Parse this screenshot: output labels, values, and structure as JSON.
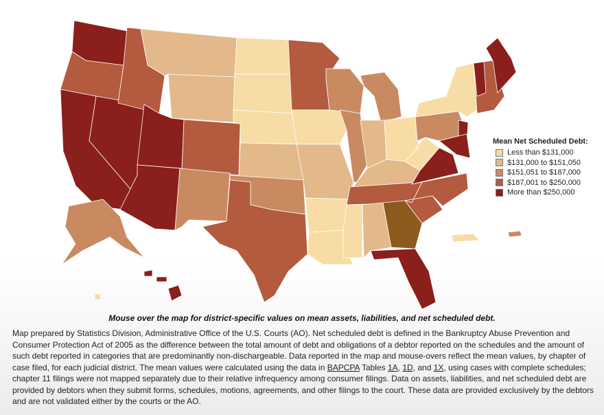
{
  "legend": {
    "title": "Mean Net Scheduled Debt:",
    "items": [
      {
        "label": "Less than $131,000",
        "color": "#f8dca6"
      },
      {
        "label": "$131,000 to $151,050",
        "color": "#e3b88a"
      },
      {
        "label": "$151,051 to $187,000",
        "color": "#c98a62"
      },
      {
        "label": "$187,001 to $250,000",
        "color": "#b35a3f"
      },
      {
        "label": "More than $250,000",
        "color": "#8a1f1b"
      }
    ]
  },
  "caption": "Mouse over the map for district-specific values on mean assets, liabilities, and net scheduled debt.",
  "description": [
    "Map prepared by Statistics Division, Administrative Office of the U.S. Courts (AO). Net scheduled debt is defined in the Bankruptcy Abuse Prevention and Consumer Protection Act of 2005 as the difference between the total amount of debt and obligations of a debtor reported on the schedules and the amount of such debt reported in categories that are predominantly non-dischargeable. Data reported in the map and mouse-overs reflect the mean values, by chapter of case filed, for each judicial district. The mean values were calculated using the data in ",
    "BAPCPA",
    " Tables ",
    "1A",
    ", ",
    "1D",
    ", and ",
    "1X",
    ", using cases with complete schedules; chapter 11 filings were not mapped separately due to their relative infrequency among consumer filings. Data on assets, liabilities, and net scheduled debt are provided by debtors when they submit forms, schedules, motions, agreements, and other filings to the court. These data are provided exclusively by the debtors and are not validated either by the courts or the AO."
  ]
}
